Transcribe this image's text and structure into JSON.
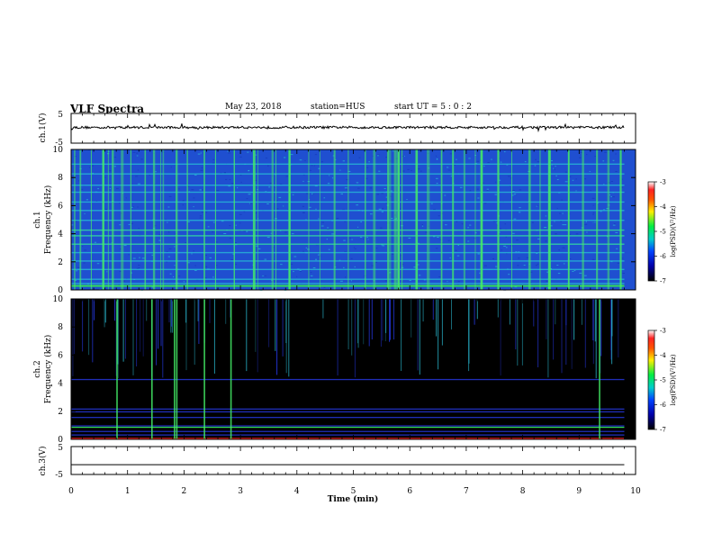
{
  "header": {
    "title": "VLF Spectra",
    "date": "May 23, 2018",
    "station": "station=HUS",
    "start_ut": "start  UT =  5 : 0  : 2"
  },
  "chart_data": [
    {
      "type": "line",
      "panel": "ch1-waveform",
      "ylabel": "ch.1(V)",
      "ylim": [
        -5,
        5
      ],
      "yticks": [
        "5",
        "-5"
      ],
      "x_range_min": [
        0,
        9.8
      ],
      "description_level_V": 0.3
    },
    {
      "type": "heatmap",
      "panel": "ch1-spectrogram",
      "ylabel_channel": "ch.1",
      "ylabel": "Frequency  (kHz)",
      "ylim_kHz": [
        0,
        10
      ],
      "yticks": [
        "0",
        "2",
        "4",
        "6",
        "8",
        "10"
      ],
      "x_range_min": [
        0,
        9.8
      ],
      "colorbar": {
        "label": "log(PSD)(V²/Hz)",
        "range": [
          -7,
          -3
        ],
        "ticks": [
          "-3",
          "-4",
          "-5",
          "-6",
          "-7"
        ]
      }
    },
    {
      "type": "heatmap",
      "panel": "ch2-spectrogram",
      "ylabel_channel": "ch.2",
      "ylabel": "Frequency  (kHz)",
      "ylim_kHz": [
        0,
        10
      ],
      "yticks": [
        "0",
        "2",
        "4",
        "6",
        "8",
        "10"
      ],
      "x_range_min": [
        0,
        9.8
      ],
      "colorbar": {
        "label": "log(PSD)(V²/Hz)",
        "range": [
          -7,
          -3
        ],
        "ticks": [
          "-3",
          "-4",
          "-5",
          "-6",
          "-7"
        ]
      }
    },
    {
      "type": "line",
      "panel": "ch3-waveform",
      "ylabel": "ch.3(V)",
      "ylim": [
        -5,
        5
      ],
      "yticks": [
        "5",
        "-5"
      ],
      "x_range_min": [
        0,
        9.8
      ],
      "values": [
        -1.5,
        -1.5
      ]
    }
  ],
  "xaxis": {
    "label": "Time  (min)",
    "range": [
      0,
      10
    ],
    "ticks": [
      "0",
      "1",
      "2",
      "3",
      "4",
      "5",
      "6",
      "7",
      "8",
      "9",
      "10"
    ]
  },
  "colors": {
    "ch1_background": "#1f4fd0",
    "ch2_background": "#000000",
    "line_band": "#33dd55",
    "burst": "#44ee66"
  }
}
